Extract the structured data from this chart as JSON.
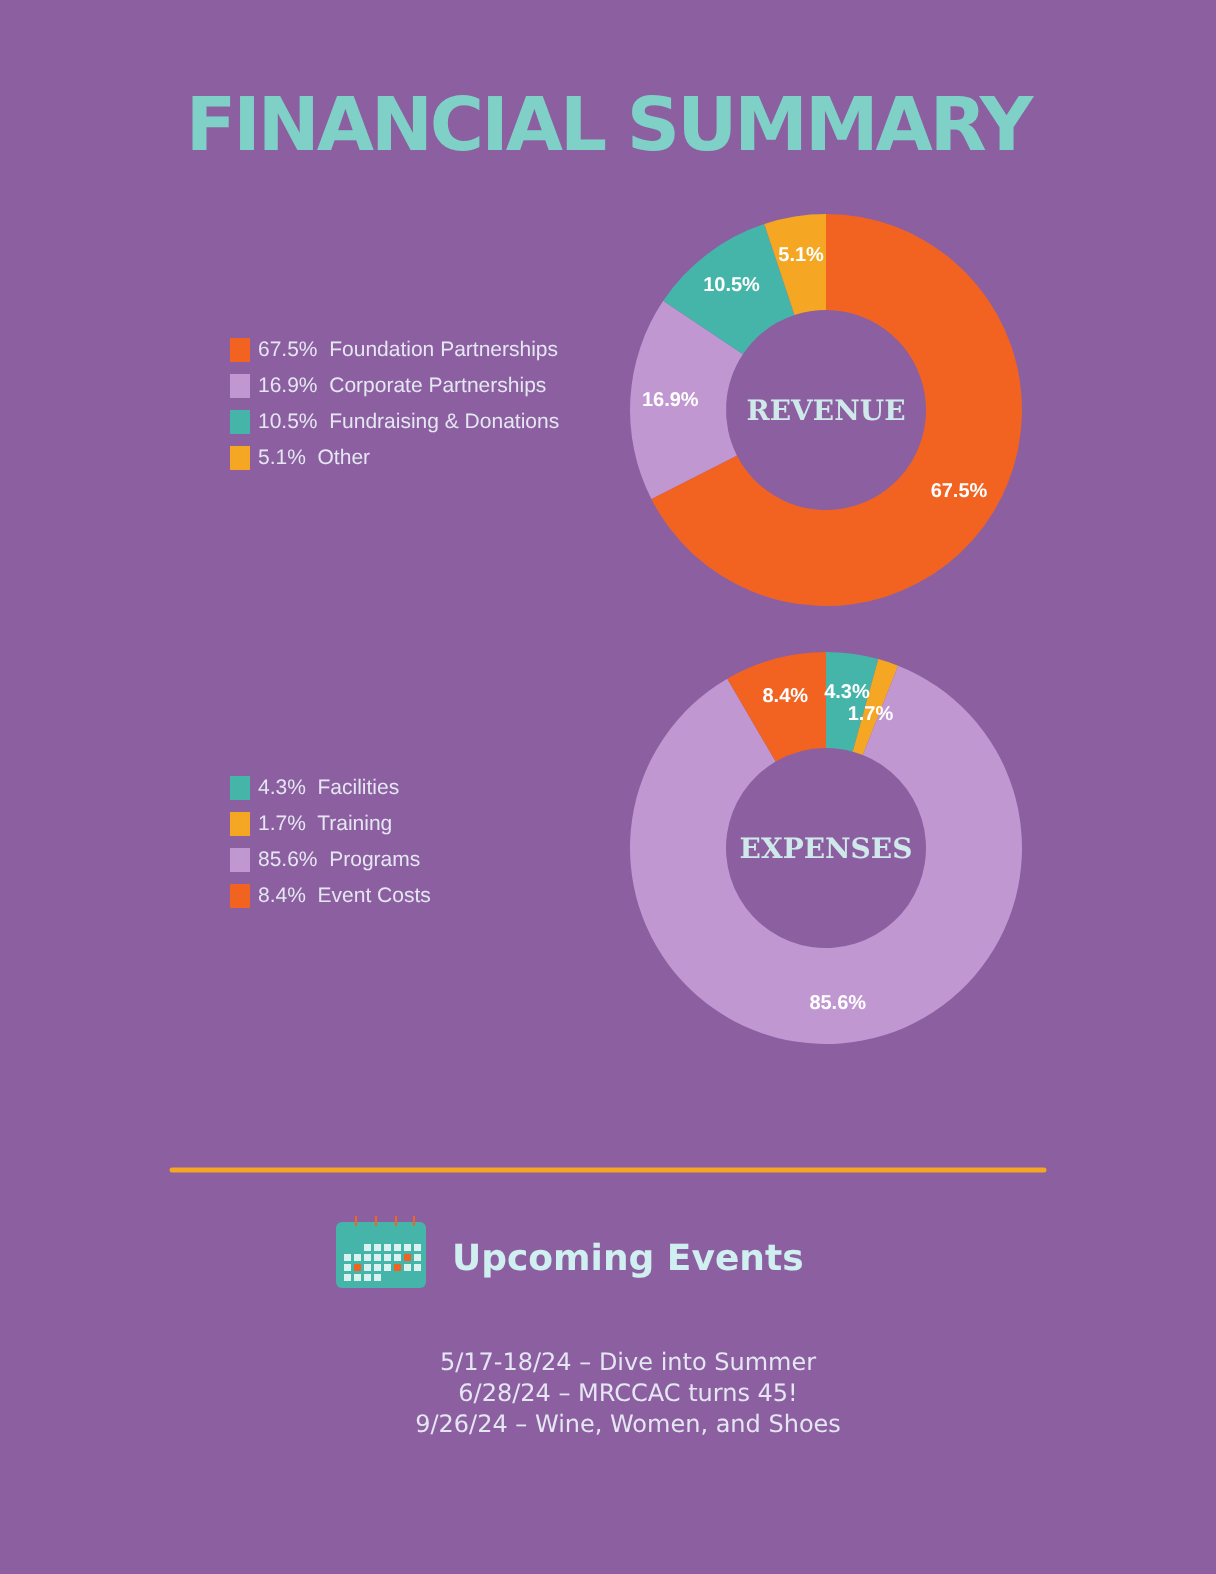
{
  "chart_data": [
    {
      "type": "donut",
      "title": "FINANCIAL SUMMARY",
      "subtitle": "REVENUE",
      "categories": [
        "Foundation Partnerships",
        "Corporate Partnerships",
        "Fundraising & Donations",
        "Other"
      ],
      "values": [
        67.5,
        16.9,
        10.5,
        5.1
      ],
      "colors": [
        "#f26322",
        "#c197d2",
        "#45b5aa",
        "#f5a623"
      ],
      "value_labels": [
        "67.5%",
        "16.9%",
        "10.5%",
        "5.1%"
      ],
      "legend": "left"
    },
    {
      "type": "donut",
      "subtitle": "EXPENSES",
      "categories": [
        "Facilities",
        "Training",
        "Programs",
        "Event Costs"
      ],
      "values": [
        4.3,
        1.7,
        85.6,
        8.4
      ],
      "colors": [
        "#45b5aa",
        "#f5a623",
        "#c197d2",
        "#f26322"
      ],
      "value_labels": [
        "4.3%",
        "1.7%",
        "85.6%",
        "8.4%"
      ],
      "legend": "left"
    },
    {
      "type": "other",
      "title": "Upcoming Events",
      "annotations": [
        "5/17-18/24 – Dive into Summer",
        "6/28/24 – MRCCAC turns 45!",
        "9/26/24 – Wine, Women, and Shoes"
      ]
    }
  ]
}
